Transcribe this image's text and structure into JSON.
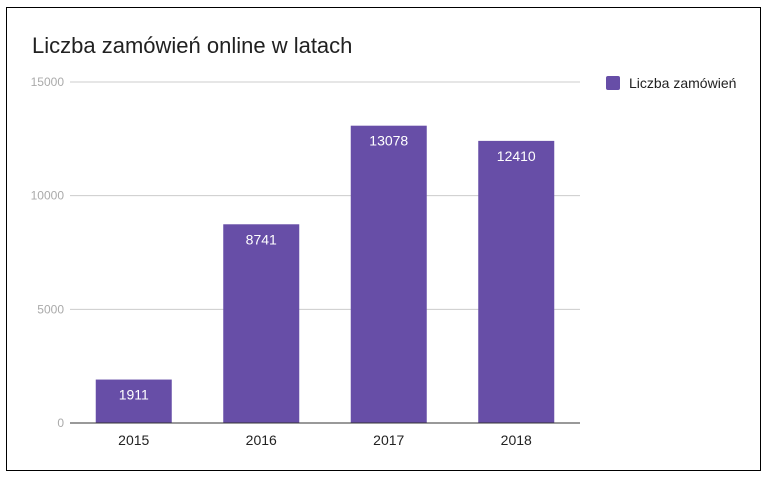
{
  "chart_data": {
    "type": "bar",
    "title": "Liczba zamówień online w latach",
    "xlabel": "",
    "ylabel": "",
    "categories": [
      "2015",
      "2016",
      "2017",
      "2018"
    ],
    "series": [
      {
        "name": "Liczba zamówień",
        "values": [
          1911,
          8741,
          13078,
          12410
        ]
      }
    ],
    "ylim": [
      0,
      15000
    ],
    "yticks": [
      0,
      5000,
      10000,
      15000
    ],
    "data_labels": [
      "1911",
      "8741",
      "13078",
      "12410"
    ],
    "grid": true,
    "legend_position": "right",
    "colors": {
      "bar": "#674ea7",
      "grid": "#cccccc",
      "axis": "#333333",
      "tick_label": "#aaaaaa",
      "data_label": "#ffffff"
    }
  }
}
